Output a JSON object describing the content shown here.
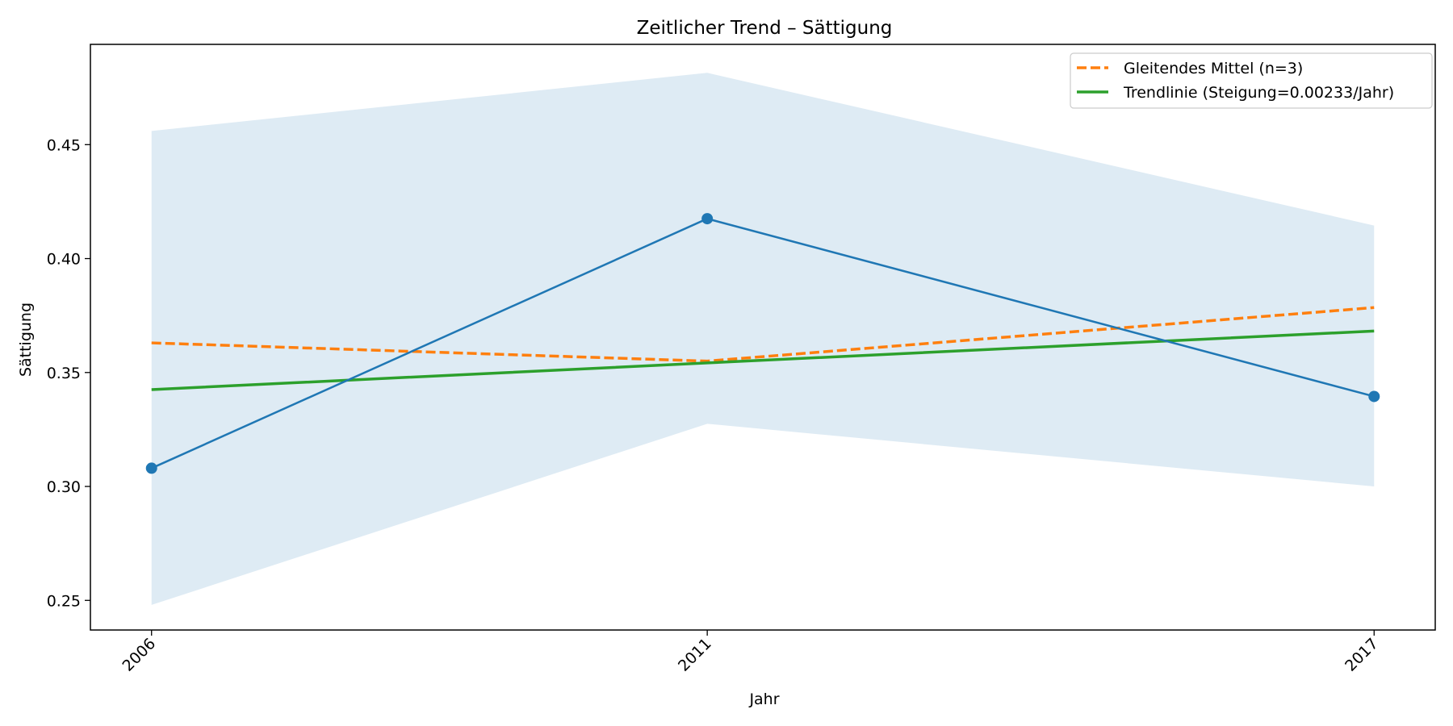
{
  "chart_data": {
    "type": "line",
    "title": "Zeitlicher Trend – Sättigung",
    "xlabel": "Jahr",
    "ylabel": "Sättigung",
    "x": [
      2006,
      2011,
      2017
    ],
    "x_tick_labels": [
      "2006",
      "2011",
      "2017"
    ],
    "xlim": [
      2005.45,
      2017.55
    ],
    "ylim": [
      0.237,
      0.494
    ],
    "y_ticks": [
      0.25,
      0.3,
      0.35,
      0.4,
      0.45
    ],
    "y_tick_labels": [
      "0.25",
      "0.30",
      "0.35",
      "0.40",
      "0.45"
    ],
    "grid": false,
    "legend_position": "top-right",
    "series": [
      {
        "values": [
          0.308,
          0.4175,
          0.3395
        ],
        "color": "#1f77b4",
        "style": "solid-with-markers"
      },
      {
        "name": "Gleitendes Mittel (n=3)",
        "values": [
          0.363,
          0.355,
          0.3785
        ],
        "color": "#ff7f0e",
        "style": "dashed"
      },
      {
        "name": "Trendlinie (Steigung=0.00233/Jahr)",
        "values": [
          0.3425,
          0.3542,
          0.3682
        ],
        "color": "#2ca02c",
        "style": "solid"
      }
    ],
    "band": {
      "lower": [
        0.248,
        0.3275,
        0.3
      ],
      "upper": [
        0.456,
        0.4815,
        0.4145
      ],
      "color": "#1f77b4",
      "opacity": 0.15
    }
  }
}
